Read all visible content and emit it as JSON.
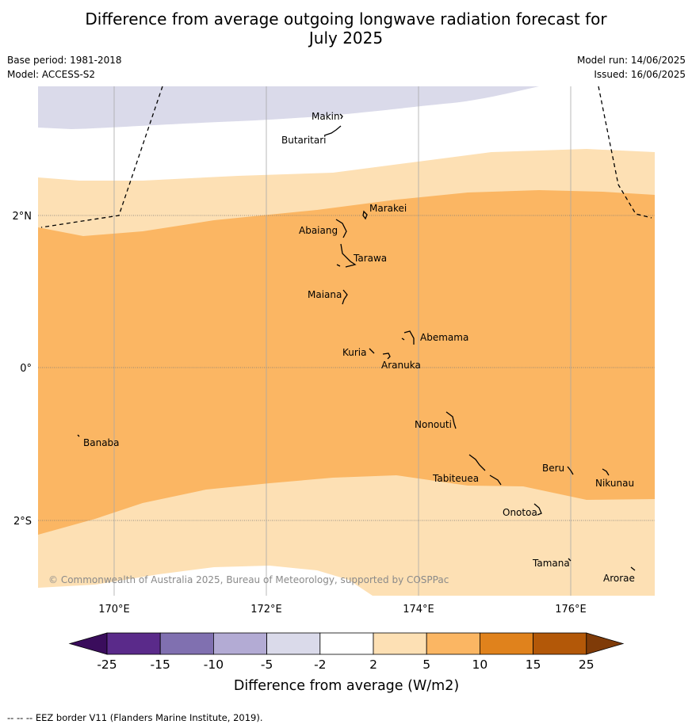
{
  "title_line1": "Difference from average outgoing longwave radiation forecast for",
  "title_line2": "July 2025",
  "base_period": "Base period: 1981-2018",
  "model": "Model: ACCESS-S2",
  "model_run": "Model run: 14/06/2025",
  "issued": "Issued: 16/06/2025",
  "copyright": "© Commonwealth of Australia 2025, Bureau of Meteorology, supported by COSPPac",
  "lon_labels": [
    "170°E",
    "172°E",
    "174°E",
    "176°E"
  ],
  "lat_labels": [
    "2°N",
    "0°",
    "2°S"
  ],
  "places": [
    "Makin",
    "Butaritari",
    "Marakei",
    "Abaiang",
    "Tarawa",
    "Maiana",
    "Abemama",
    "Kuria",
    "Aranuka",
    "Nonouti",
    "Banaba",
    "Tabiteuea",
    "Beru",
    "Nikunau",
    "Onotoa",
    "Tamana",
    "Arorae"
  ],
  "colorbar": {
    "label": "Difference from average (W/m2)",
    "ticks": [
      "-25",
      "-15",
      "-10",
      "-5",
      "-2",
      "2",
      "5",
      "10",
      "15",
      "25"
    ],
    "colors": [
      "#3a0d5c",
      "#5a2a8a",
      "#8070b0",
      "#b3abd4",
      "#dadaea",
      "#ffffff",
      "#fde0b4",
      "#fbb663",
      "#e0821c",
      "#b35808",
      "#7f3b08"
    ]
  },
  "footnote": "--  --  -- EEZ border V11 (Flanders Marine Institute, 2019)."
}
